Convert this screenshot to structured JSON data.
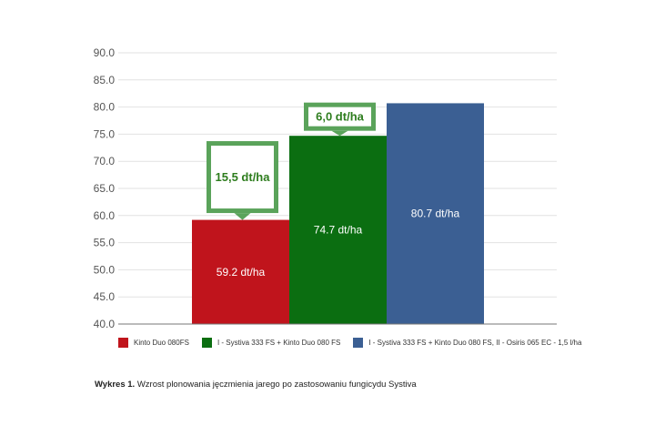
{
  "chart_data": {
    "type": "bar",
    "y_ticks": [
      "40.0",
      "45.0",
      "50.0",
      "55.0",
      "60.0",
      "65.0",
      "70.0",
      "75.0",
      "80.0",
      "85.0",
      "90.0"
    ],
    "ylim": [
      40,
      90
    ],
    "grid": true,
    "legend_position": "bottom",
    "series": [
      {
        "name": "Kinto Duo 080FS",
        "value": 59.2,
        "label": "59.2 dt/ha",
        "color": "#c0141c"
      },
      {
        "name": "I - Systiva 333 FS + Kinto Duo 080 FS",
        "value": 74.7,
        "label": "74.7 dt/ha",
        "color": "#0b6e11"
      },
      {
        "name": "I - Systiva 333 FS + Kinto Duo 080 FS, II - Osiris 065 EC - 1,5 l/ha",
        "value": 80.7,
        "label": "80.7 dt/ha",
        "color": "#3b5f93"
      }
    ],
    "annotations": [
      {
        "text": "15,5 dt/ha",
        "attached_to_series": 0
      },
      {
        "text": "6,0 dt/ha",
        "attached_to_series": 1
      }
    ],
    "annotation_color": "#5aa35a"
  },
  "caption": {
    "prefix": "Wykres 1.",
    "text": " Wzrost plonowania jęczmienia jarego po zastosowaniu fungicydu Systiva"
  }
}
